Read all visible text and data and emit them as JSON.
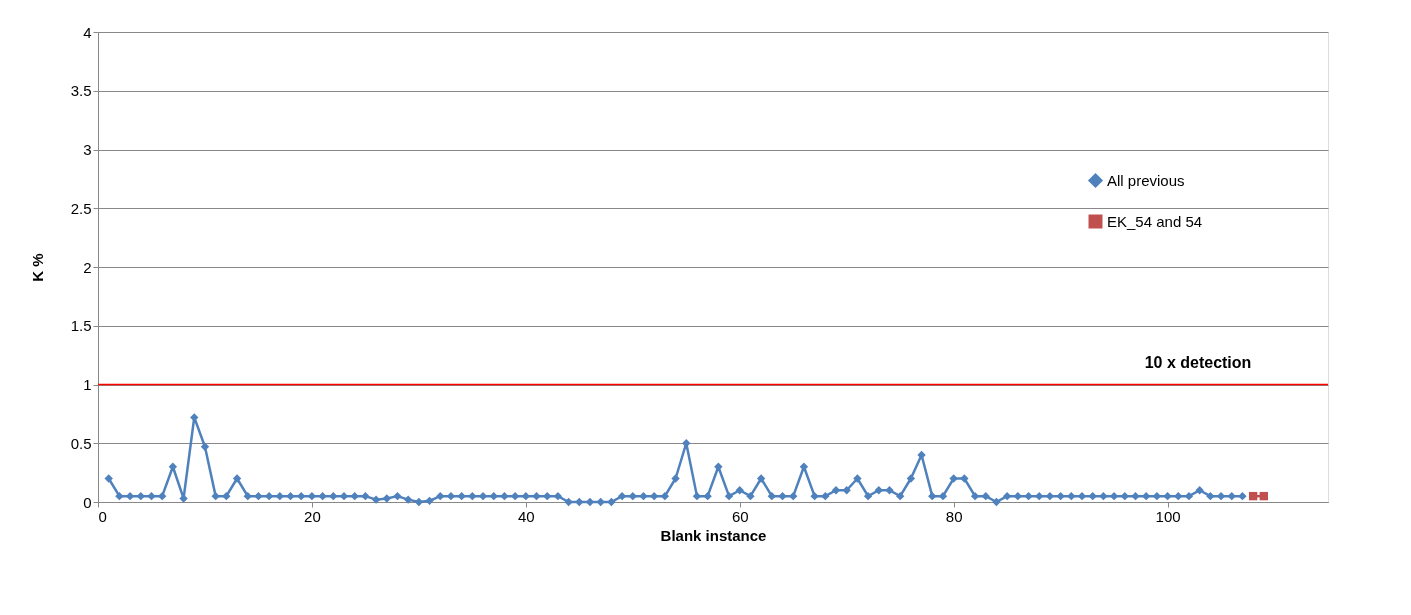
{
  "chart_data": {
    "type": "line",
    "xlabel": "Blank instance",
    "ylabel": "K %",
    "xlim": [
      0,
      115
    ],
    "xticks": [
      0,
      20,
      40,
      60,
      80,
      100
    ],
    "ylim": [
      0,
      4
    ],
    "yticks": [
      0,
      0.5,
      1,
      1.5,
      2,
      2.5,
      3,
      3.5,
      4
    ],
    "grid": "y",
    "legend": "right",
    "ref_lines": [
      {
        "axis": "y",
        "value": 1,
        "label": "10 x detection",
        "color": "#ff0000"
      }
    ],
    "series": [
      {
        "name": "All previous",
        "color": "#4f81bd",
        "marker": "diamond",
        "x": [
          1,
          2,
          3,
          4,
          5,
          6,
          7,
          8,
          9,
          10,
          11,
          12,
          13,
          14,
          15,
          16,
          17,
          18,
          19,
          20,
          21,
          22,
          23,
          24,
          25,
          26,
          27,
          28,
          29,
          30,
          31,
          32,
          33,
          34,
          35,
          36,
          37,
          38,
          39,
          40,
          41,
          42,
          43,
          44,
          45,
          46,
          47,
          48,
          49,
          50,
          51,
          52,
          53,
          54,
          55,
          56,
          57,
          58,
          59,
          60,
          61,
          62,
          63,
          64,
          65,
          66,
          67,
          68,
          69,
          70,
          71,
          72,
          73,
          74,
          75,
          76,
          77,
          78,
          79,
          80,
          81,
          82,
          83,
          84,
          85,
          86,
          87,
          88,
          89,
          90,
          91,
          92,
          93,
          94,
          95,
          96,
          97,
          98,
          99,
          100,
          101,
          102,
          103,
          104,
          105,
          106,
          107
        ],
        "values": [
          0.2,
          0.05,
          0.05,
          0.05,
          0.05,
          0.05,
          0.3,
          0.03,
          0.72,
          0.47,
          0.05,
          0.05,
          0.2,
          0.05,
          0.05,
          0.05,
          0.05,
          0.05,
          0.05,
          0.05,
          0.05,
          0.05,
          0.05,
          0.05,
          0.05,
          0.02,
          0.03,
          0.05,
          0.02,
          0,
          0.01,
          0.05,
          0.05,
          0.05,
          0.05,
          0.05,
          0.05,
          0.05,
          0.05,
          0.05,
          0.05,
          0.05,
          0.05,
          0,
          0,
          0,
          0,
          0,
          0.05,
          0.05,
          0.05,
          0.05,
          0.05,
          0.2,
          0.5,
          0.05,
          0.05,
          0.3,
          0.05,
          0.1,
          0.05,
          0.2,
          0.05,
          0.05,
          0.05,
          0.3,
          0.05,
          0.05,
          0.1,
          0.1,
          0.2,
          0.05,
          0.1,
          0.1,
          0.05,
          0.2,
          0.4,
          0.05,
          0.05,
          0.2,
          0.2,
          0.05,
          0.05,
          0,
          0.05,
          0.05,
          0.05,
          0.05,
          0.05,
          0.05,
          0.05,
          0.05,
          0.05,
          0.05,
          0.05,
          0.05,
          0.05,
          0.05,
          0.05,
          0.05,
          0.05,
          0.05,
          0.1,
          0.05,
          0.05,
          0.05,
          0.05
        ]
      },
      {
        "name": "EK_54 and 54",
        "color": "#c0504d",
        "marker": "square",
        "x": [
          108,
          109
        ],
        "values": [
          0.05,
          0.05
        ]
      }
    ]
  }
}
